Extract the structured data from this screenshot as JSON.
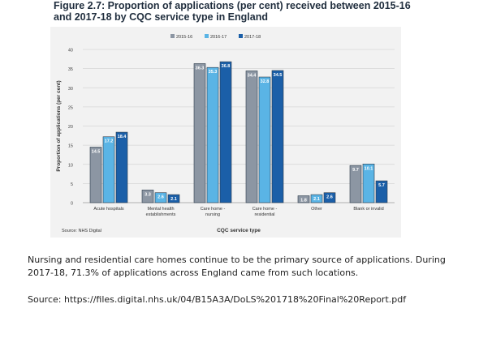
{
  "figure_title_line1": "Figure 2.7: Proportion of applications (per cent) received between 2015-16",
  "figure_title_line2": "and 2017-18 by CQC service type in England",
  "chart_data": {
    "type": "bar",
    "categories": [
      [
        "Acute hospitals"
      ],
      [
        "Mental health",
        "establishments"
      ],
      [
        "Care home -",
        "nursing"
      ],
      [
        "Care home -",
        "residential"
      ],
      [
        "Other"
      ],
      [
        "Blank or invalid"
      ]
    ],
    "series": [
      {
        "name": "2015-16",
        "color": "#8c96a3",
        "values": [
          14.5,
          3.3,
          36.3,
          34.4,
          1.8,
          9.7
        ]
      },
      {
        "name": "2016-17",
        "color": "#5ab4e5",
        "values": [
          17.2,
          2.6,
          35.3,
          32.8,
          2.1,
          10.1
        ]
      },
      {
        "name": "2017-18",
        "color": "#1b5fa8",
        "values": [
          18.4,
          2.1,
          36.8,
          34.5,
          2.6,
          5.7
        ]
      }
    ],
    "value_labels": [
      [
        "14.5",
        "3.3",
        "36.3",
        "34.4",
        "1.8",
        "9.7"
      ],
      [
        "17.2",
        "2.6",
        "35.3",
        "32.8",
        "2.1",
        "10.1"
      ],
      [
        "18.4",
        "2.1",
        "36.8",
        "34.5",
        "2.6",
        "5.7"
      ]
    ],
    "ylabel": "Proportion of applications (per cent)",
    "xlabel": "CQC service type",
    "ylim": [
      0,
      40
    ],
    "yticks": [
      "0",
      "5",
      "10",
      "15",
      "20",
      "25",
      "30",
      "35",
      "40"
    ],
    "ytick_values": [
      0,
      5,
      10,
      15,
      20,
      25,
      30,
      35,
      40
    ],
    "grid": true,
    "legend_position": "top",
    "source_note": "Source: NHS Digital"
  },
  "paragraph": "Nursing and residential care homes continue to be the primary source of applications. During 2017-18, 71.3% of applications across England came from such locations.",
  "source_text": "Source: https://files.digital.nhs.uk/04/B15A3A/DoLS%201718%20Final%20Report.pdf"
}
